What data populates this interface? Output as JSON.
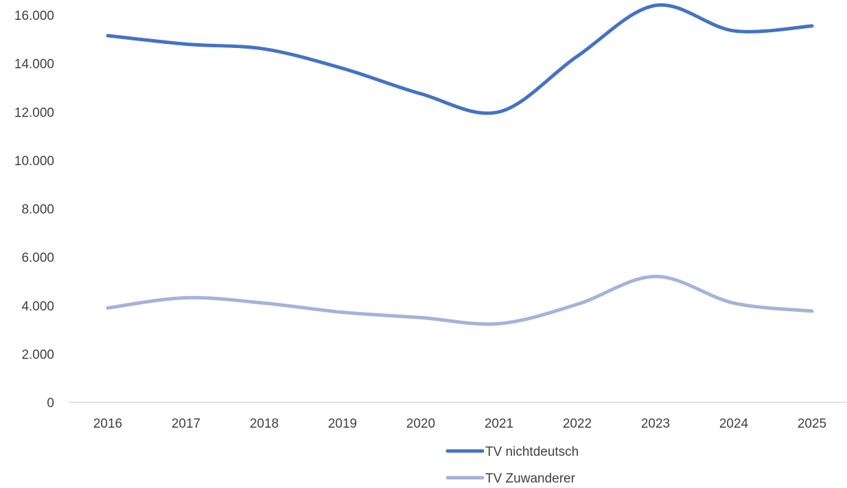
{
  "chart_data": {
    "type": "line",
    "title": "",
    "xlabel": "",
    "ylabel": "",
    "x": [
      "2016",
      "2017",
      "2018",
      "2019",
      "2020",
      "2021",
      "2022",
      "2023",
      "2024",
      "2025"
    ],
    "ylim": [
      0,
      16000
    ],
    "yticks": [
      0,
      2000,
      4000,
      6000,
      8000,
      10000,
      12000,
      14000,
      16000
    ],
    "ytick_labels": [
      "0",
      "2.000",
      "4.000",
      "6.000",
      "8.000",
      "10.000",
      "12.000",
      "14.000",
      "16.000"
    ],
    "grid": false,
    "smooth": true,
    "legend_position": "bottom",
    "series": [
      {
        "name": "TV nichtdeutsch",
        "color": "#4472c4",
        "values": [
          15150,
          14800,
          14600,
          13800,
          12750,
          12000,
          14300,
          16400,
          15350,
          15550
        ]
      },
      {
        "name": "TV Zuwanderer",
        "color": "#a5b3da",
        "values": [
          3900,
          4320,
          4100,
          3720,
          3500,
          3250,
          4050,
          5200,
          4100,
          3770
        ]
      }
    ]
  }
}
